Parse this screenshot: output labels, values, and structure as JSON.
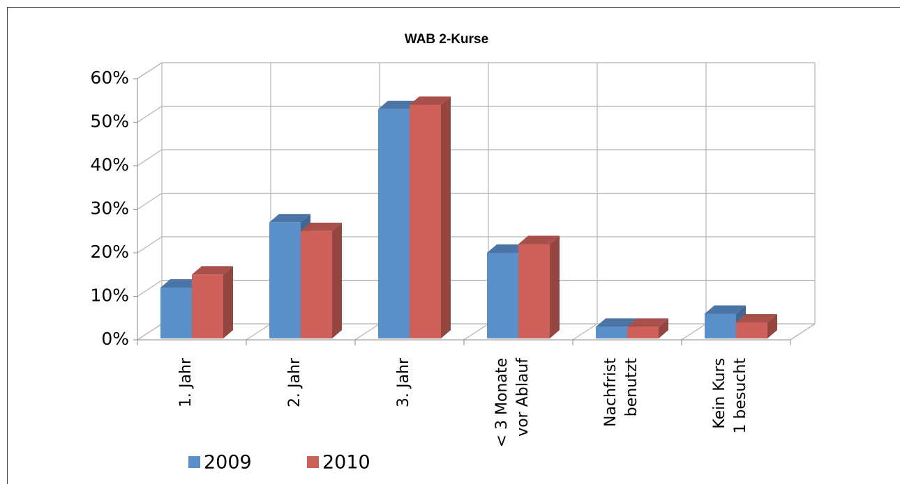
{
  "chart_data": {
    "type": "bar3d",
    "title": "WAB 2-Kurse",
    "categories": [
      "1. Jahr",
      "2. Jahr",
      "3. Jahr",
      "< 3 Monate\nvor Ablauf",
      "Nachfrist\nbenutzt",
      "Kein Kurs\n1 besucht"
    ],
    "series": [
      {
        "name": "2009",
        "color": "#5b8fc9",
        "values": [
          12,
          27,
          53,
          20,
          3,
          6
        ]
      },
      {
        "name": "2010",
        "color": "#cd6159",
        "values": [
          15,
          25,
          54,
          22,
          3,
          4
        ]
      }
    ],
    "ylim": [
      0,
      60
    ],
    "yticks": [
      {
        "value": 0,
        "label": "0%"
      },
      {
        "value": 10,
        "label": "10%"
      },
      {
        "value": 20,
        "label": "20%"
      },
      {
        "value": 30,
        "label": "30%"
      },
      {
        "value": 40,
        "label": "40%"
      },
      {
        "value": 50,
        "label": "50%"
      },
      {
        "value": 60,
        "label": "60%"
      }
    ],
    "grid": true,
    "legend": "bottom"
  }
}
